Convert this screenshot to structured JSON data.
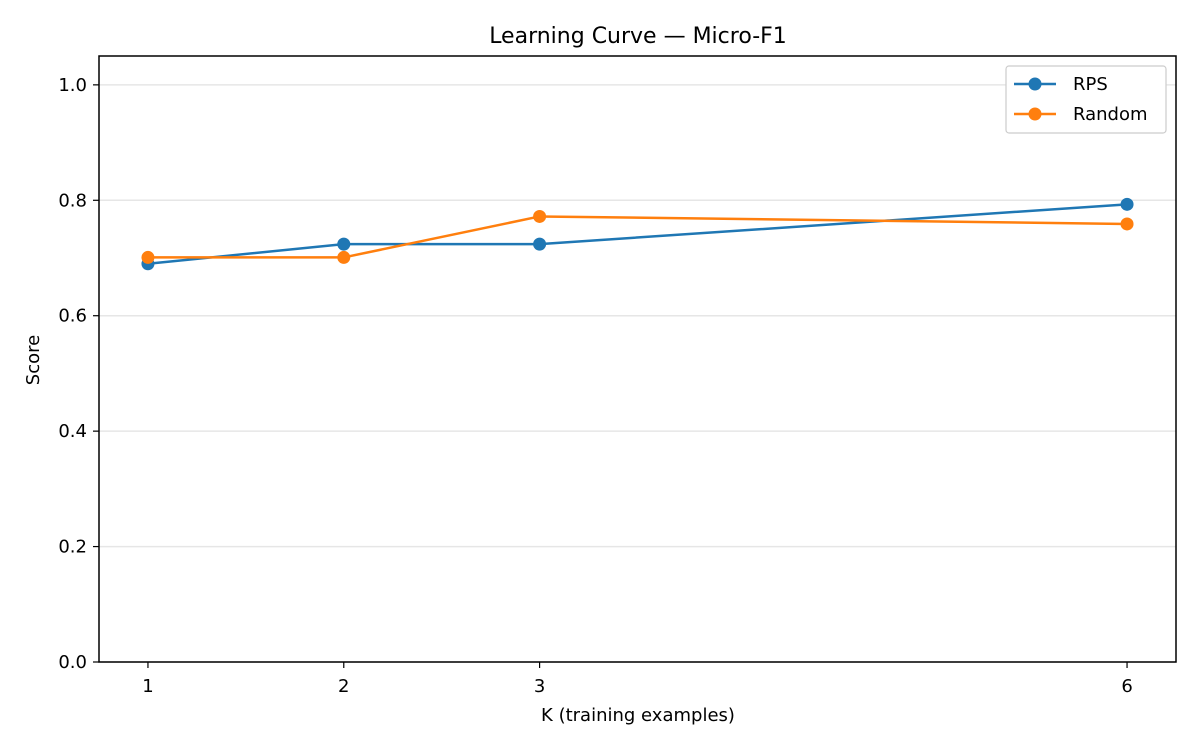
{
  "chart_data": {
    "type": "line",
    "title": "Learning Curve — Micro-F1",
    "xlabel": "K (training examples)",
    "ylabel": "Score",
    "x": [
      1,
      2,
      3,
      6
    ],
    "xticks": [
      "1",
      "2",
      "3",
      "6"
    ],
    "xlim": [
      0.75,
      6.25
    ],
    "ylim": [
      0.0,
      1.05
    ],
    "yticks": [
      "0.0",
      "0.2",
      "0.4",
      "0.6",
      "0.8",
      "1.0"
    ],
    "grid": "horizontal",
    "legend_position": "top-right",
    "series": [
      {
        "name": "RPS",
        "color": "#1f77b4",
        "values": [
          0.69,
          0.724,
          0.724,
          0.793
        ]
      },
      {
        "name": "Random",
        "color": "#ff7f0e",
        "values": [
          0.701,
          0.701,
          0.772,
          0.759
        ]
      }
    ]
  }
}
